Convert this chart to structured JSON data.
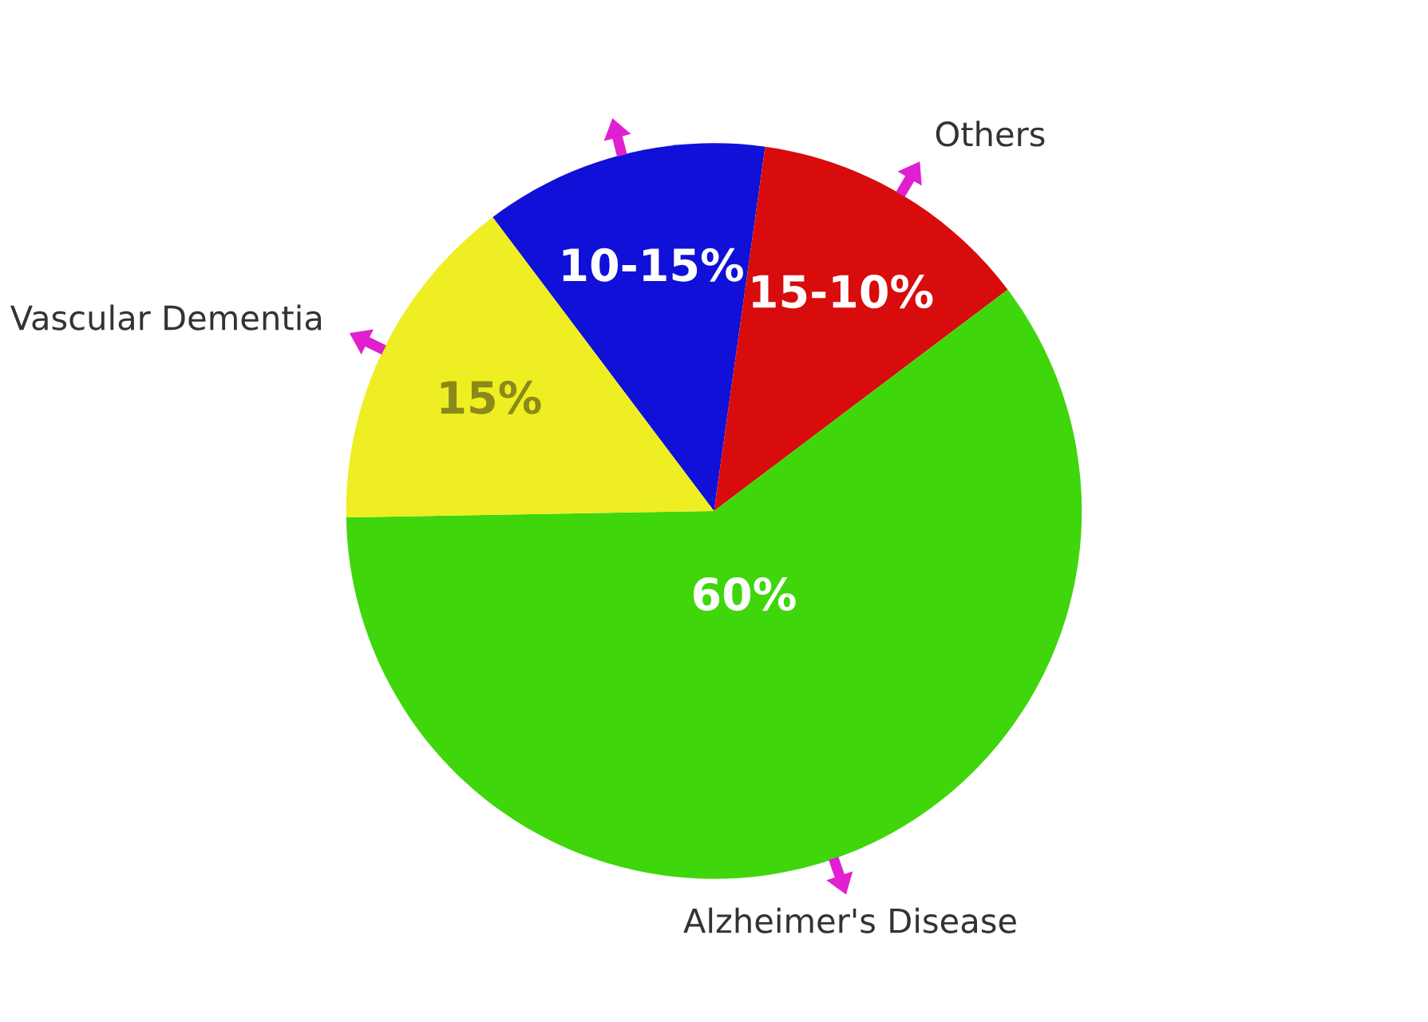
{
  "chart_data": {
    "type": "pie",
    "categories": [
      null,
      "Others",
      "Alzheimer's Disease",
      "Vascular Dementia"
    ],
    "values": [
      12.5,
      12.5,
      60,
      15
    ],
    "colors": [
      "#1010d8",
      "#d80c0c",
      "#3fd60c",
      "#eeee22"
    ],
    "value_labels": [
      null,
      null,
      "60%",
      "15%"
    ],
    "annotations": [
      "10-15%",
      "15-10%"
    ]
  }
}
